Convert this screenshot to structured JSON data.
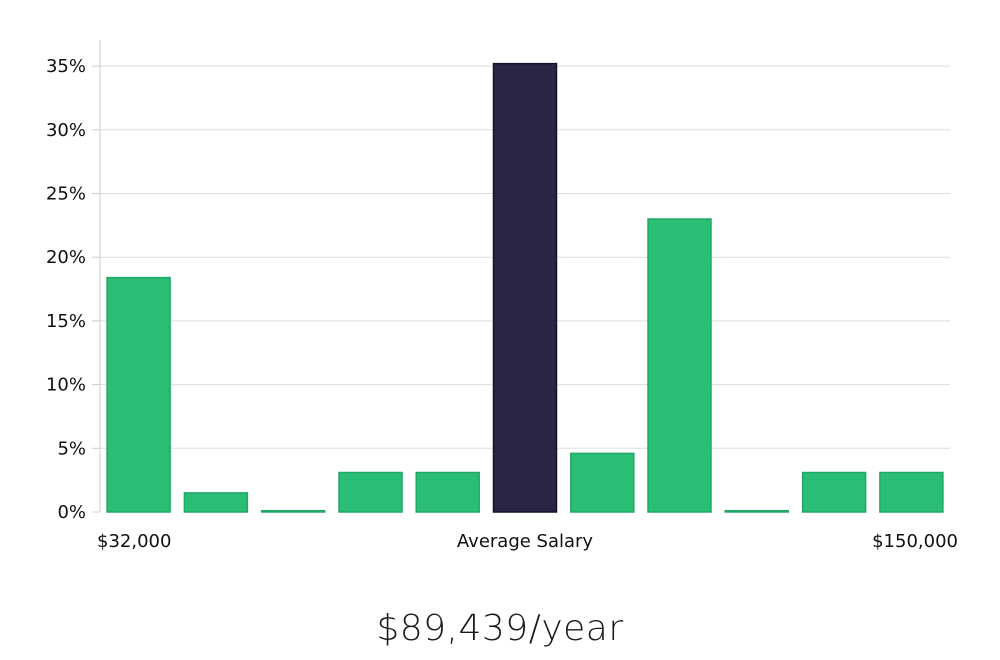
{
  "colors": {
    "bar": "#29bd76",
    "bar_edge": "#22a866",
    "highlight": "#282545",
    "highlight_edge": "#141228",
    "grid": "#dddddd",
    "axis": "#cccccc"
  },
  "chart_data": {
    "type": "bar",
    "y_unit": "%",
    "ylim": [
      0,
      37
    ],
    "yticks": [
      0,
      5,
      10,
      15,
      20,
      25,
      30,
      35
    ],
    "ytick_labels": [
      "0%",
      "5%",
      "10%",
      "15%",
      "20%",
      "25%",
      "30%",
      "35%"
    ],
    "grid": true,
    "values": [
      18.4,
      1.5,
      0.1,
      3.1,
      3.1,
      35.2,
      4.6,
      23.0,
      0.1,
      3.1,
      3.1
    ],
    "highlight_index": 5,
    "x_labels": {
      "min": "$32,000",
      "center": "Average Salary",
      "max": "$150,000"
    }
  },
  "summary": {
    "salary_text": "$89,439/year"
  }
}
